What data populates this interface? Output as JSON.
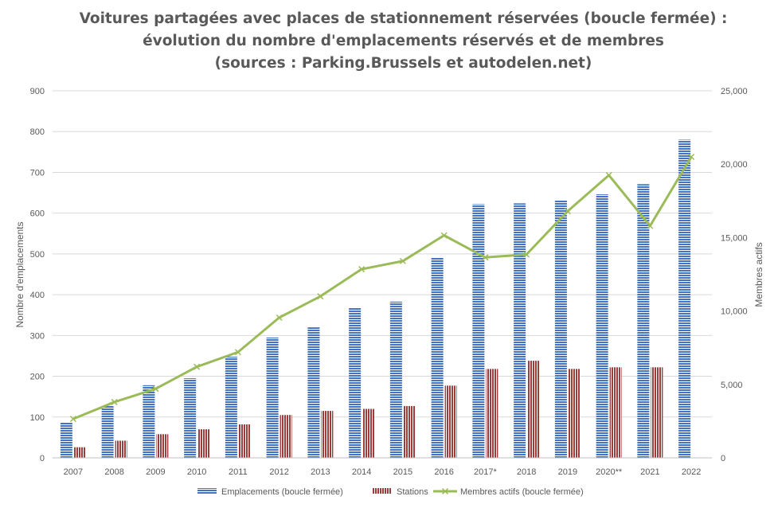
{
  "chart_data": {
    "type": "bar",
    "title_lines": [
      "Voitures partagées avec places de stationnement réservées (boucle fermée) :",
      "évolution du nombre d'emplacements réservés et de membres",
      "(sources : Parking.Brussels et autodelen.net)"
    ],
    "categories": [
      "2007",
      "2008",
      "2009",
      "2010",
      "2011",
      "2012",
      "2013",
      "2014",
      "2015",
      "2016",
      "2017*",
      "2018",
      "2019",
      "2020**",
      "2021",
      "2022"
    ],
    "series": [
      {
        "name": "Emplacements (boucle fermée)",
        "kind": "bar",
        "axis": "left",
        "color": "#4472C4",
        "values": [
          86,
          128,
          178,
          195,
          248,
          295,
          320,
          368,
          383,
          492,
          622,
          624,
          632,
          646,
          671,
          780
        ]
      },
      {
        "name": "Stations",
        "kind": "bar",
        "axis": "left",
        "color": "#9E3B3B",
        "values": [
          26,
          42,
          58,
          70,
          82,
          105,
          115,
          120,
          127,
          177,
          218,
          238,
          218,
          222,
          222,
          0
        ]
      },
      {
        "name": "Membres actifs (boucle fermée)",
        "kind": "line",
        "axis": "right",
        "color": "#9BBB59",
        "values": [
          2650,
          3800,
          4700,
          6200,
          7200,
          9550,
          11000,
          12850,
          13400,
          15150,
          13650,
          13850,
          16800,
          19250,
          15800,
          20500
        ]
      }
    ],
    "y_left": {
      "label": "Nombre d'emplacements",
      "min": 0,
      "max": 900,
      "ticks": [
        "0",
        "100",
        "200",
        "300",
        "400",
        "500",
        "600",
        "700",
        "800",
        "900"
      ]
    },
    "y_right": {
      "label": "Membres actifs",
      "min": 0,
      "max": 25000,
      "ticks": [
        "0",
        "5,000",
        "10,000",
        "15,000",
        "20,000",
        "25,000"
      ]
    },
    "grid": true,
    "legend_position": "bottom"
  }
}
